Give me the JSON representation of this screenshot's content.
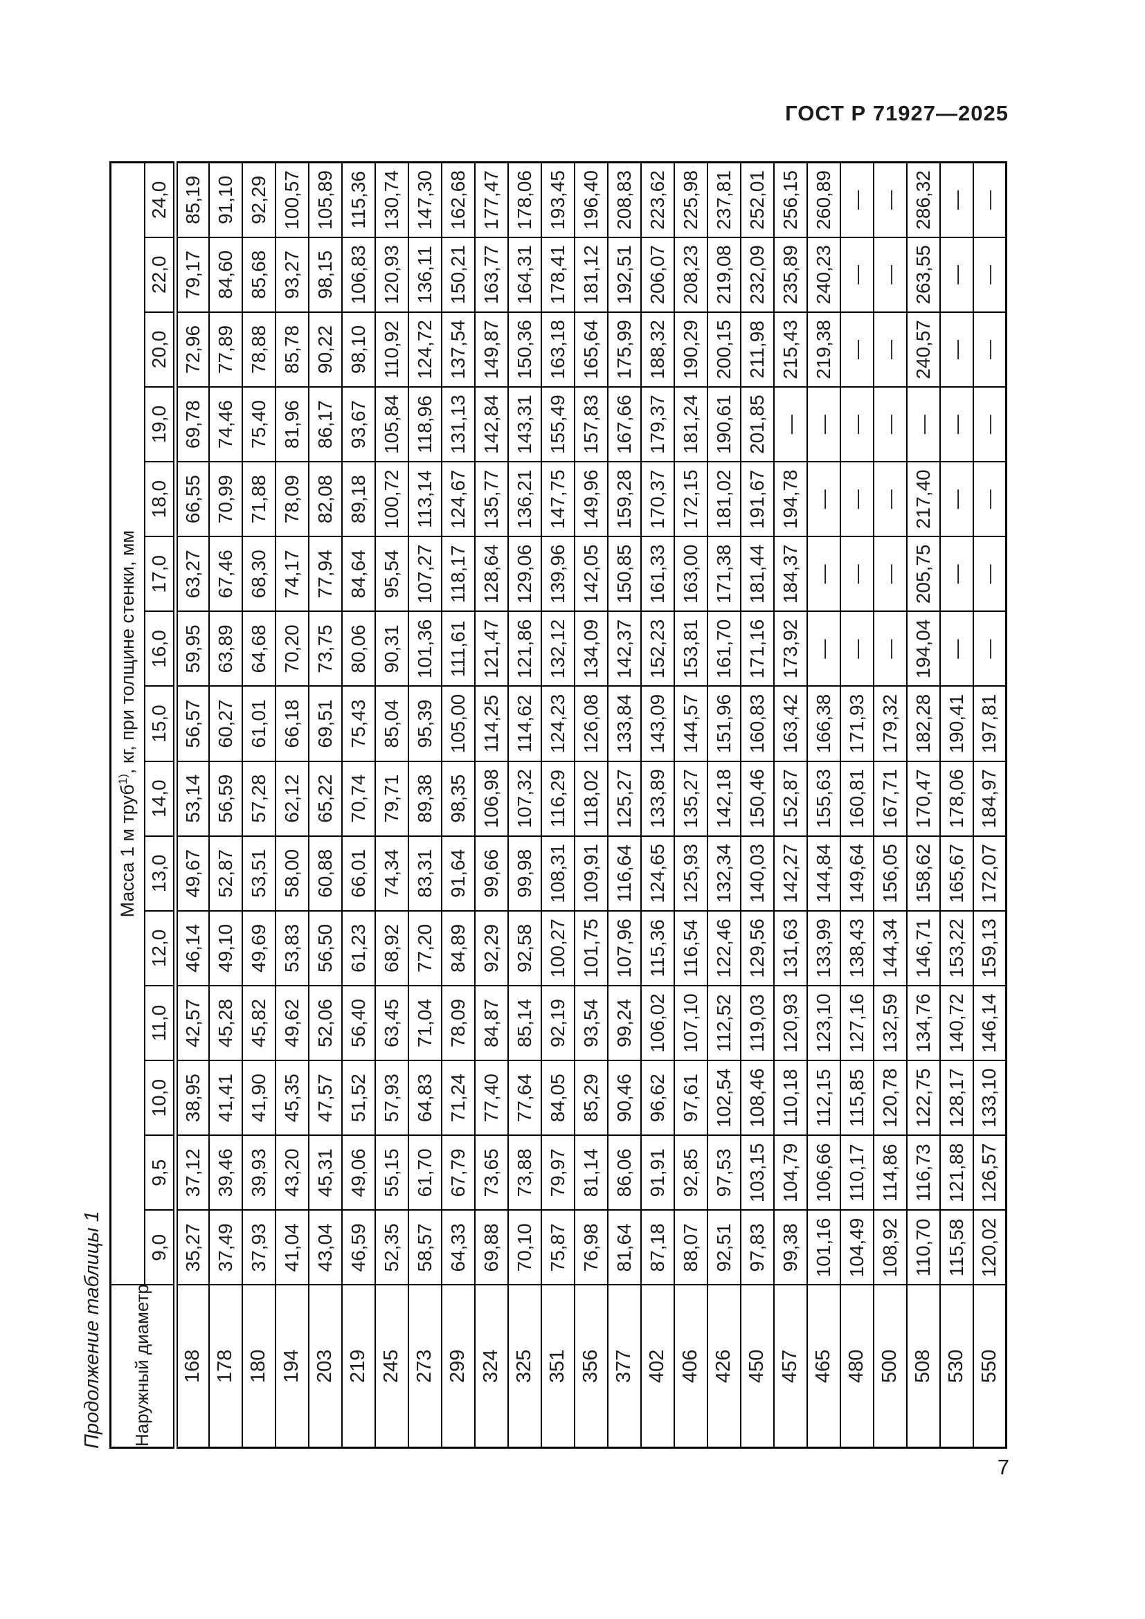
{
  "page": {
    "standard_ref": "ГОСТ Р 71927—2025",
    "table_caption": "Продолжение таблицы 1",
    "page_number": "7"
  },
  "table": {
    "col_header": "Наружный диаметр, мм",
    "span_header_main": "Масса 1 м труб",
    "footnote_marker": "1)",
    "span_header_tail": ", кг, при толщине стенки, мм",
    "thicknesses": [
      "9,0",
      "9,5",
      "10,0",
      "11,0",
      "12,0",
      "13,0",
      "14,0",
      "15,0",
      "16,0",
      "17,0",
      "18,0",
      "19,0",
      "20,0",
      "22,0",
      "24,0"
    ],
    "no_value": "—",
    "rows": [
      {
        "d": "168",
        "v": [
          "35,27",
          "37,12",
          "38,95",
          "42,57",
          "46,14",
          "49,67",
          "53,14",
          "56,57",
          "59,95",
          "63,27",
          "66,55",
          "69,78",
          "72,96",
          "79,17",
          "85,19"
        ]
      },
      {
        "d": "178",
        "v": [
          "37,49",
          "39,46",
          "41,41",
          "45,28",
          "49,10",
          "52,87",
          "56,59",
          "60,27",
          "63,89",
          "67,46",
          "70,99",
          "74,46",
          "77,89",
          "84,60",
          "91,10"
        ]
      },
      {
        "d": "180",
        "v": [
          "37,93",
          "39,93",
          "41,90",
          "45,82",
          "49,69",
          "53,51",
          "57,28",
          "61,01",
          "64,68",
          "68,30",
          "71,88",
          "75,40",
          "78,88",
          "85,68",
          "92,29"
        ]
      },
      {
        "d": "194",
        "v": [
          "41,04",
          "43,20",
          "45,35",
          "49,62",
          "53,83",
          "58,00",
          "62,12",
          "66,18",
          "70,20",
          "74,17",
          "78,09",
          "81,96",
          "85,78",
          "93,27",
          "100,57"
        ]
      },
      {
        "d": "203",
        "v": [
          "43,04",
          "45,31",
          "47,57",
          "52,06",
          "56,50",
          "60,88",
          "65,22",
          "69,51",
          "73,75",
          "77,94",
          "82,08",
          "86,17",
          "90,22",
          "98,15",
          "105,89"
        ]
      },
      {
        "d": "219",
        "v": [
          "46,59",
          "49,06",
          "51,52",
          "56,40",
          "61,23",
          "66,01",
          "70,74",
          "75,43",
          "80,06",
          "84,64",
          "89,18",
          "93,67",
          "98,10",
          "106,83",
          "115,36"
        ]
      },
      {
        "d": "245",
        "v": [
          "52,35",
          "55,15",
          "57,93",
          "63,45",
          "68,92",
          "74,34",
          "79,71",
          "85,04",
          "90,31",
          "95,54",
          "100,72",
          "105,84",
          "110,92",
          "120,93",
          "130,74"
        ]
      },
      {
        "d": "273",
        "v": [
          "58,57",
          "61,70",
          "64,83",
          "71,04",
          "77,20",
          "83,31",
          "89,38",
          "95,39",
          "101,36",
          "107,27",
          "113,14",
          "118,96",
          "124,72",
          "136,11",
          "147,30"
        ]
      },
      {
        "d": "299",
        "v": [
          "64,33",
          "67,79",
          "71,24",
          "78,09",
          "84,89",
          "91,64",
          "98,35",
          "105,00",
          "111,61",
          "118,17",
          "124,67",
          "131,13",
          "137,54",
          "150,21",
          "162,68"
        ]
      },
      {
        "d": "324",
        "v": [
          "69,88",
          "73,65",
          "77,40",
          "84,87",
          "92,29",
          "99,66",
          "106,98",
          "114,25",
          "121,47",
          "128,64",
          "135,77",
          "142,84",
          "149,87",
          "163,77",
          "177,47"
        ]
      },
      {
        "d": "325",
        "v": [
          "70,10",
          "73,88",
          "77,64",
          "85,14",
          "92,58",
          "99,98",
          "107,32",
          "114,62",
          "121,86",
          "129,06",
          "136,21",
          "143,31",
          "150,36",
          "164,31",
          "178,06"
        ]
      },
      {
        "d": "351",
        "v": [
          "75,87",
          "79,97",
          "84,05",
          "92,19",
          "100,27",
          "108,31",
          "116,29",
          "124,23",
          "132,12",
          "139,96",
          "147,75",
          "155,49",
          "163,18",
          "178,41",
          "193,45"
        ]
      },
      {
        "d": "356",
        "v": [
          "76,98",
          "81,14",
          "85,29",
          "93,54",
          "101,75",
          "109,91",
          "118,02",
          "126,08",
          "134,09",
          "142,05",
          "149,96",
          "157,83",
          "165,64",
          "181,12",
          "196,40"
        ]
      },
      {
        "d": "377",
        "v": [
          "81,64",
          "86,06",
          "90,46",
          "99,24",
          "107,96",
          "116,64",
          "125,27",
          "133,84",
          "142,37",
          "150,85",
          "159,28",
          "167,66",
          "175,99",
          "192,51",
          "208,83"
        ]
      },
      {
        "d": "402",
        "v": [
          "87,18",
          "91,91",
          "96,62",
          "106,02",
          "115,36",
          "124,65",
          "133,89",
          "143,09",
          "152,23",
          "161,33",
          "170,37",
          "179,37",
          "188,32",
          "206,07",
          "223,62"
        ]
      },
      {
        "d": "406",
        "v": [
          "88,07",
          "92,85",
          "97,61",
          "107,10",
          "116,54",
          "125,93",
          "135,27",
          "144,57",
          "153,81",
          "163,00",
          "172,15",
          "181,24",
          "190,29",
          "208,23",
          "225,98"
        ]
      },
      {
        "d": "426",
        "v": [
          "92,51",
          "97,53",
          "102,54",
          "112,52",
          "122,46",
          "132,34",
          "142,18",
          "151,96",
          "161,70",
          "171,38",
          "181,02",
          "190,61",
          "200,15",
          "219,08",
          "237,81"
        ]
      },
      {
        "d": "450",
        "v": [
          "97,83",
          "103,15",
          "108,46",
          "119,03",
          "129,56",
          "140,03",
          "150,46",
          "160,83",
          "171,16",
          "181,44",
          "191,67",
          "201,85",
          "211,98",
          "232,09",
          "252,01"
        ]
      },
      {
        "d": "457",
        "v": [
          "99,38",
          "104,79",
          "110,18",
          "120,93",
          "131,63",
          "142,27",
          "152,87",
          "163,42",
          "173,92",
          "184,37",
          "194,78",
          "—",
          "215,43",
          "235,89",
          "256,15"
        ]
      },
      {
        "d": "465",
        "v": [
          "101,16",
          "106,66",
          "112,15",
          "123,10",
          "133,99",
          "144,84",
          "155,63",
          "166,38",
          "—",
          "—",
          "—",
          "—",
          "219,38",
          "240,23",
          "260,89"
        ]
      },
      {
        "d": "480",
        "v": [
          "104,49",
          "110,17",
          "115,85",
          "127,16",
          "138,43",
          "149,64",
          "160,81",
          "171,93",
          "—",
          "—",
          "—",
          "—",
          "—",
          "—",
          "—"
        ]
      },
      {
        "d": "500",
        "v": [
          "108,92",
          "114,86",
          "120,78",
          "132,59",
          "144,34",
          "156,05",
          "167,71",
          "179,32",
          "—",
          "—",
          "—",
          "—",
          "—",
          "—",
          "—"
        ]
      },
      {
        "d": "508",
        "v": [
          "110,70",
          "116,73",
          "122,75",
          "134,76",
          "146,71",
          "158,62",
          "170,47",
          "182,28",
          "194,04",
          "205,75",
          "217,40",
          "—",
          "240,57",
          "263,55",
          "286,32"
        ]
      },
      {
        "d": "530",
        "v": [
          "115,58",
          "121,88",
          "128,17",
          "140,72",
          "153,22",
          "165,67",
          "178,06",
          "190,41",
          "—",
          "—",
          "—",
          "—",
          "—",
          "—",
          "—"
        ]
      },
      {
        "d": "550",
        "v": [
          "120,02",
          "126,57",
          "133,10",
          "146,14",
          "159,13",
          "172,07",
          "184,97",
          "197,81",
          "—",
          "—",
          "—",
          "—",
          "—",
          "—",
          "—"
        ]
      }
    ]
  }
}
